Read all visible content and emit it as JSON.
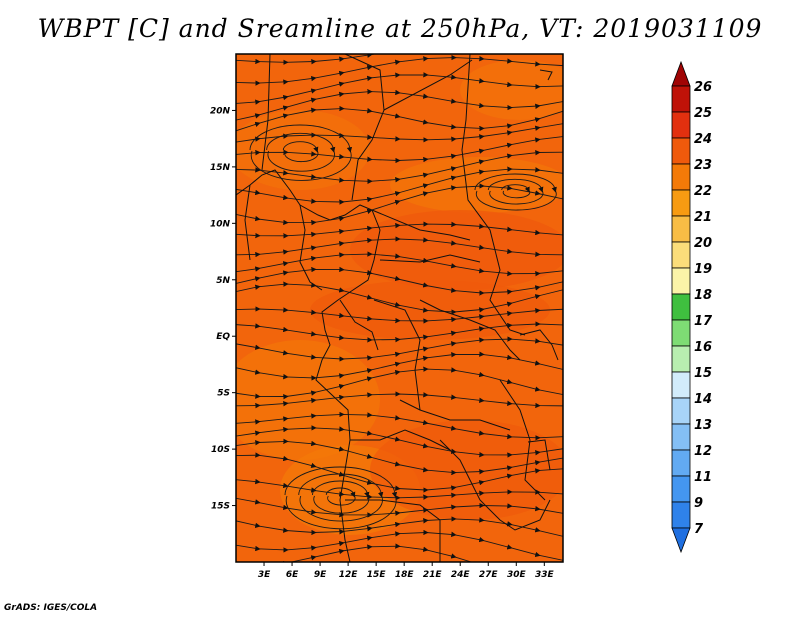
{
  "title": "WBPT [C] and Sreamline at 250hPa, VT: 2019031109",
  "credit": "GrADS: IGES/COLA",
  "map": {
    "lon_range": [
      0,
      35
    ],
    "lat_range": [
      -20,
      25
    ],
    "lat_labels": [
      {
        "lat": 20,
        "text": "20N"
      },
      {
        "lat": 15,
        "text": "15N"
      },
      {
        "lat": 10,
        "text": "10N"
      },
      {
        "lat": 5,
        "text": "5N"
      },
      {
        "lat": 0,
        "text": "EQ"
      },
      {
        "lat": -5,
        "text": "5S"
      },
      {
        "lat": -10,
        "text": "10S"
      },
      {
        "lat": -15,
        "text": "15S"
      }
    ],
    "lon_labels": [
      {
        "lon": 3,
        "text": "3E"
      },
      {
        "lon": 6,
        "text": "6E"
      },
      {
        "lon": 9,
        "text": "9E"
      },
      {
        "lon": 12,
        "text": "12E"
      },
      {
        "lon": 15,
        "text": "15E"
      },
      {
        "lon": 18,
        "text": "18E"
      },
      {
        "lon": 21,
        "text": "21E"
      },
      {
        "lon": 24,
        "text": "24E"
      },
      {
        "lon": 27,
        "text": "27E"
      },
      {
        "lon": 30,
        "text": "30E"
      },
      {
        "lon": 33,
        "text": "33E"
      }
    ]
  },
  "colorbar": {
    "levels": [
      {
        "label": "7",
        "color": "#1f6fe0"
      },
      {
        "label": "9",
        "color": "#2f82ea"
      },
      {
        "label": "11",
        "color": "#4496f0"
      },
      {
        "label": "12",
        "color": "#62aaf2"
      },
      {
        "label": "13",
        "color": "#84bff5"
      },
      {
        "label": "14",
        "color": "#a8d4f8"
      },
      {
        "label": "15",
        "color": "#d2ecfb"
      },
      {
        "label": "16",
        "color": "#b8eeb0"
      },
      {
        "label": "17",
        "color": "#7edc74"
      },
      {
        "label": "18",
        "color": "#3fbf3f"
      },
      {
        "label": "19",
        "color": "#fbf3a8"
      },
      {
        "label": "20",
        "color": "#fbdd7a"
      },
      {
        "label": "21",
        "color": "#f8bd45"
      },
      {
        "label": "22",
        "color": "#f79b12"
      },
      {
        "label": "23",
        "color": "#f47a08"
      },
      {
        "label": "24",
        "color": "#ef5a0c"
      },
      {
        "label": "25",
        "color": "#e2300f"
      },
      {
        "label": "26",
        "color": "#bf1208"
      }
    ],
    "top_color": "#a00404"
  }
}
